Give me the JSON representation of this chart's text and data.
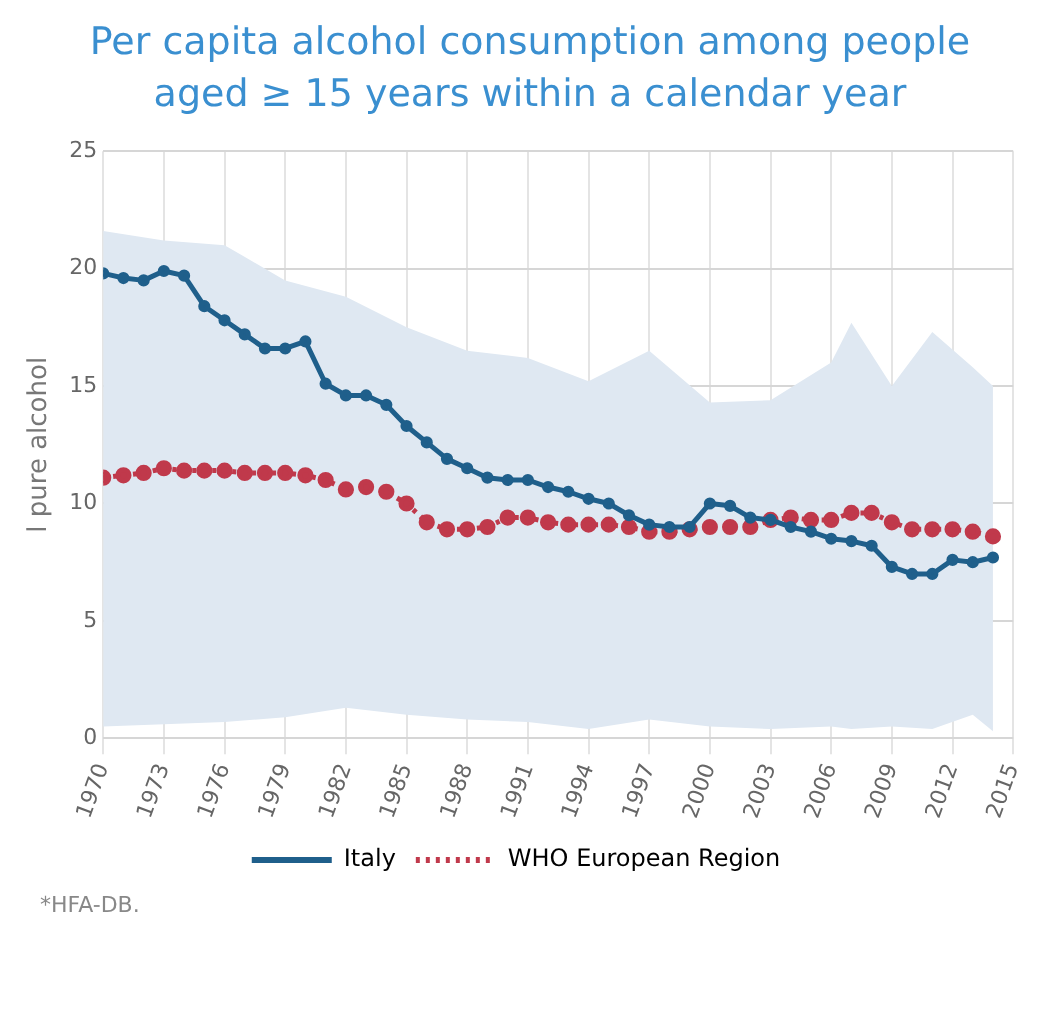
{
  "chart_data": {
    "type": "line",
    "title": "Per capita alcohol consumption among people aged ≥ 15 years within a calendar year",
    "ylabel": "l pure alcohol",
    "x": [
      1970,
      1971,
      1972,
      1973,
      1974,
      1975,
      1976,
      1977,
      1978,
      1979,
      1980,
      1981,
      1982,
      1983,
      1984,
      1985,
      1986,
      1987,
      1988,
      1989,
      1990,
      1991,
      1992,
      1993,
      1994,
      1995,
      1996,
      1997,
      1998,
      1999,
      2000,
      2001,
      2002,
      2003,
      2004,
      2005,
      2006,
      2007,
      2008,
      2009,
      2010,
      2011,
      2012,
      2013,
      2014
    ],
    "series": [
      {
        "name": "Italy",
        "color": "#1f5f8b",
        "marker": "circle",
        "line_style": "solid",
        "values": [
          19.8,
          19.6,
          19.5,
          19.9,
          19.7,
          18.4,
          17.8,
          17.2,
          16.6,
          16.6,
          16.9,
          15.1,
          14.6,
          14.6,
          14.2,
          13.3,
          12.6,
          11.9,
          11.5,
          11.1,
          11.0,
          11.0,
          10.7,
          10.5,
          10.2,
          10.0,
          9.5,
          9.1,
          9.0,
          9.0,
          10.0,
          9.9,
          9.4,
          9.3,
          9.0,
          8.8,
          8.5,
          8.4,
          8.2,
          7.3,
          7.0,
          7.0,
          7.6,
          7.5,
          7.7
        ]
      },
      {
        "name": "WHO European Region",
        "color": "#c0394b",
        "marker": "circle",
        "line_style": "dotted",
        "values": [
          11.1,
          11.2,
          11.3,
          11.5,
          11.4,
          11.4,
          11.4,
          11.3,
          11.3,
          11.3,
          11.2,
          11.0,
          10.6,
          10.7,
          10.5,
          10.0,
          9.2,
          8.9,
          8.9,
          9.0,
          9.4,
          9.4,
          9.2,
          9.1,
          9.1,
          9.1,
          9.0,
          8.8,
          8.8,
          8.9,
          9.0,
          9.0,
          9.0,
          9.3,
          9.4,
          9.3,
          9.3,
          9.6,
          9.6,
          9.2,
          8.9,
          8.9,
          8.9,
          8.8,
          8.6
        ]
      },
      {
        "type": "area",
        "color": "#dfe8f2",
        "x": [
          1970,
          1973,
          1976,
          1979,
          1982,
          1985,
          1988,
          1991,
          1994,
          1997,
          2000,
          2003,
          2006,
          2007,
          2009,
          2011,
          2013,
          2014
        ],
        "values": [
          null,
          null,
          null,
          null,
          null,
          null,
          null,
          null,
          null,
          null,
          null,
          null,
          null,
          null,
          null,
          null,
          null,
          null
        ],
        "lower": [
          0.5,
          0.6,
          0.7,
          0.9,
          1.3,
          1.0,
          0.8,
          0.7,
          0.4,
          0.8,
          0.5,
          0.4,
          0.5,
          0.4,
          0.5,
          0.4,
          1.0,
          0.3
        ],
        "upper": [
          21.6,
          21.2,
          21.0,
          19.5,
          18.8,
          17.5,
          16.5,
          16.2,
          15.2,
          16.5,
          14.3,
          14.4,
          16.0,
          17.7,
          15.0,
          17.3,
          15.8,
          15.0
        ]
      }
    ],
    "xlim": [
      1970,
      2015
    ],
    "xticks": [
      1970,
      1973,
      1976,
      1979,
      1982,
      1985,
      1988,
      1991,
      1994,
      1997,
      2000,
      2003,
      2006,
      2009,
      2012,
      2015
    ],
    "ylim": [
      0,
      25
    ],
    "yticks": [
      0,
      5,
      10,
      15,
      20,
      25
    ],
    "grid": true,
    "legend": "bottom",
    "annotations": [
      "*HFA-DB."
    ]
  }
}
